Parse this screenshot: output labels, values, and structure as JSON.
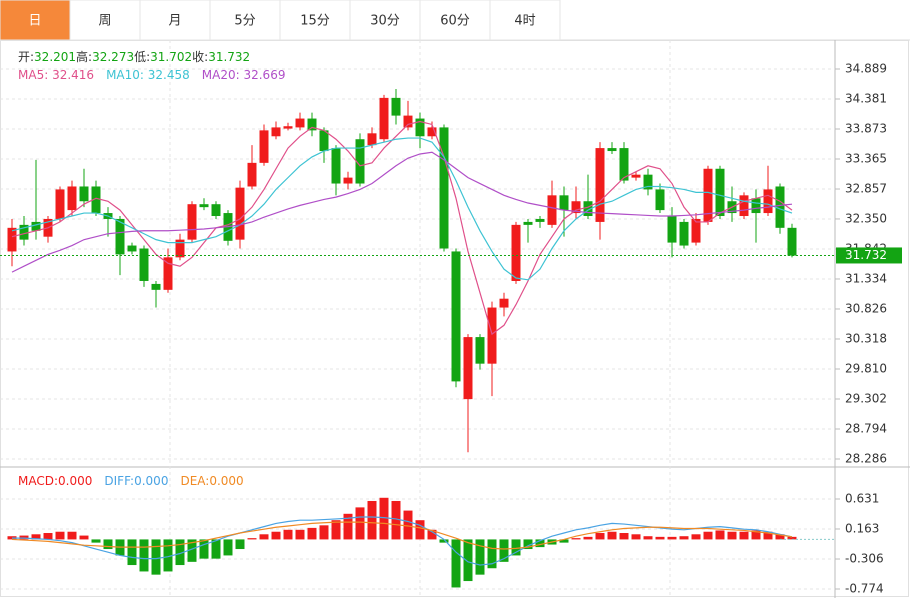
{
  "tabs": [
    "日",
    "周",
    "月",
    "5分",
    "15分",
    "30分",
    "60分",
    "4时"
  ],
  "chart_data": {
    "type": "candlestick",
    "legend": [
      {
        "label": "开:",
        "value": "32.201"
      },
      {
        "label": "高:",
        "value": "32.273"
      },
      {
        "label": "低:",
        "value": "31.702"
      },
      {
        "label": "收:",
        "value": "31.732"
      }
    ],
    "up_color": "#f01c1c",
    "down_color": "#13a413",
    "open": [
      31.8,
      32.25,
      32.3,
      32.05,
      32.35,
      32.5,
      32.9,
      32.9,
      32.45,
      32.35,
      31.9,
      31.85,
      31.25,
      31.15,
      31.7,
      32.0,
      32.6,
      32.6,
      32.45,
      32.0,
      32.9,
      33.3,
      33.75,
      33.88,
      33.9,
      34.05,
      33.85,
      33.55,
      32.95,
      33.7,
      33.6,
      33.7,
      34.4,
      33.9,
      34.05,
      33.75,
      33.9,
      31.8,
      29.3,
      30.35,
      29.9,
      30.85,
      31.3,
      32.3,
      32.35,
      32.25,
      32.75,
      32.45,
      32.65,
      32.3,
      33.55,
      33.55,
      33.05,
      33.1,
      32.85,
      32.4,
      32.3,
      31.95,
      32.3,
      33.2,
      32.65,
      32.4,
      32.7,
      32.45,
      32.9,
      32.2
    ],
    "high": [
      32.35,
      32.4,
      33.35,
      32.4,
      32.9,
      33.0,
      33.2,
      33.0,
      32.55,
      32.4,
      31.95,
      31.9,
      31.3,
      31.85,
      32.1,
      32.65,
      32.7,
      32.65,
      32.5,
      33.0,
      33.6,
      33.95,
      34.0,
      33.98,
      34.15,
      34.15,
      33.9,
      33.6,
      33.15,
      33.8,
      33.9,
      34.45,
      34.55,
      34.35,
      34.15,
      34.0,
      33.95,
      31.85,
      30.4,
      30.4,
      30.95,
      31.1,
      32.3,
      32.35,
      32.4,
      33.0,
      32.9,
      32.9,
      33.1,
      33.65,
      33.65,
      33.65,
      33.15,
      33.2,
      32.95,
      32.55,
      32.35,
      32.45,
      33.25,
      33.25,
      32.9,
      32.8,
      32.85,
      33.25,
      32.95,
      32.27
    ],
    "low": [
      31.55,
      31.9,
      32.0,
      31.95,
      32.3,
      32.4,
      32.55,
      32.4,
      32.05,
      31.4,
      31.75,
      31.2,
      30.85,
      31.1,
      31.65,
      31.95,
      32.5,
      32.35,
      31.9,
      31.85,
      32.85,
      33.25,
      33.7,
      33.85,
      33.85,
      33.75,
      33.3,
      32.75,
      32.85,
      32.9,
      33.55,
      33.65,
      33.95,
      33.85,
      33.55,
      33.7,
      31.8,
      29.5,
      28.4,
      29.8,
      29.35,
      30.7,
      31.25,
      31.95,
      32.2,
      32.2,
      32.05,
      32.35,
      32.35,
      32.0,
      33.45,
      32.95,
      33.0,
      32.75,
      32.45,
      31.7,
      31.85,
      31.9,
      32.25,
      32.35,
      32.3,
      32.35,
      31.95,
      32.4,
      32.1,
      31.7
    ],
    "close": [
      32.2,
      32.0,
      32.15,
      32.35,
      32.85,
      32.9,
      32.65,
      32.45,
      32.35,
      31.75,
      31.8,
      31.3,
      31.15,
      31.7,
      32.0,
      32.6,
      32.55,
      32.4,
      31.98,
      32.88,
      33.3,
      33.85,
      33.9,
      33.92,
      34.05,
      33.85,
      33.5,
      32.95,
      33.05,
      32.95,
      33.8,
      34.4,
      34.1,
      34.1,
      33.75,
      33.9,
      31.85,
      29.6,
      30.35,
      29.9,
      30.85,
      31.0,
      32.25,
      32.25,
      32.3,
      32.75,
      32.5,
      32.65,
      32.4,
      33.55,
      33.5,
      33.0,
      33.1,
      32.85,
      32.5,
      31.95,
      31.9,
      32.35,
      33.2,
      32.4,
      32.45,
      32.75,
      32.45,
      32.85,
      32.2,
      31.73
    ],
    "series": [
      {
        "name": "MA5",
        "color": "#e0508a",
        "value_label": "32.416",
        "values": [
          32.05,
          32.1,
          32.15,
          32.2,
          32.3,
          32.45,
          32.6,
          32.7,
          32.65,
          32.5,
          32.25,
          32.0,
          31.75,
          31.6,
          31.55,
          31.7,
          31.95,
          32.2,
          32.25,
          32.35,
          32.55,
          32.85,
          33.2,
          33.55,
          33.75,
          33.9,
          33.85,
          33.7,
          33.5,
          33.25,
          33.3,
          33.55,
          33.75,
          33.95,
          34.0,
          33.95,
          33.4,
          32.7,
          31.8,
          31.1,
          30.4,
          30.55,
          30.9,
          31.3,
          31.75,
          32.05,
          32.35,
          32.5,
          32.55,
          32.65,
          32.85,
          33.05,
          33.15,
          33.25,
          33.2,
          32.95,
          32.55,
          32.3,
          32.3,
          32.45,
          32.55,
          32.65,
          32.7,
          32.75,
          32.65,
          32.5
        ]
      },
      {
        "name": "MA10",
        "color": "#3ec3d3",
        "value_label": "32.458",
        "values": [
          32.15,
          32.2,
          32.25,
          32.3,
          32.35,
          32.4,
          32.45,
          32.45,
          32.4,
          32.3,
          32.2,
          32.1,
          32.0,
          31.95,
          31.95,
          31.95,
          32.0,
          32.05,
          32.15,
          32.25,
          32.4,
          32.6,
          32.85,
          33.05,
          33.25,
          33.4,
          33.5,
          33.55,
          33.55,
          33.55,
          33.6,
          33.65,
          33.7,
          33.72,
          33.72,
          33.65,
          33.4,
          33.0,
          32.55,
          32.15,
          31.8,
          31.5,
          31.35,
          31.32,
          31.5,
          31.85,
          32.15,
          32.35,
          32.5,
          32.6,
          32.65,
          32.75,
          32.85,
          32.9,
          32.9,
          32.88,
          32.85,
          32.8,
          32.8,
          32.75,
          32.7,
          32.65,
          32.62,
          32.6,
          32.52,
          32.45
        ]
      },
      {
        "name": "MA20",
        "color": "#b04fc8",
        "value_label": "32.669",
        "values": [
          31.45,
          31.55,
          31.65,
          31.75,
          31.82,
          31.9,
          32.0,
          32.05,
          32.1,
          32.12,
          32.14,
          32.15,
          32.15,
          32.15,
          32.16,
          32.17,
          32.18,
          32.2,
          32.22,
          32.25,
          32.3,
          32.38,
          32.45,
          32.52,
          32.58,
          32.63,
          32.68,
          32.72,
          32.78,
          32.85,
          32.95,
          33.1,
          33.25,
          33.38,
          33.45,
          33.48,
          33.35,
          33.2,
          33.05,
          32.95,
          32.85,
          32.75,
          32.68,
          32.62,
          32.58,
          32.54,
          32.5,
          32.48,
          32.46,
          32.45,
          32.44,
          32.43,
          32.42,
          32.41,
          32.4,
          32.4,
          32.41,
          32.42,
          32.44,
          32.46,
          32.48,
          32.5,
          32.53,
          32.55,
          32.58,
          32.6
        ]
      }
    ],
    "ylim": [
      28.286,
      34.889
    ],
    "yticks": [
      {
        "value": 28.286,
        "label": "28.286"
      },
      {
        "value": 28.794,
        "label": "28.794"
      },
      {
        "value": 29.302,
        "label": "29.302"
      },
      {
        "value": 29.81,
        "label": "29.810"
      },
      {
        "value": 30.318,
        "label": "30.318"
      },
      {
        "value": 30.826,
        "label": "30.826"
      },
      {
        "value": 31.334,
        "label": "31.334"
      },
      {
        "value": 31.842,
        "label": "31.842"
      },
      {
        "value": 32.35,
        "label": "32.350"
      },
      {
        "value": 32.857,
        "label": "32.857"
      },
      {
        "value": 33.365,
        "label": "33.365"
      },
      {
        "value": 33.873,
        "label": "33.873"
      },
      {
        "value": 34.381,
        "label": "34.381"
      },
      {
        "value": 34.889,
        "label": "34.889"
      }
    ],
    "last_price": 31.732,
    "last_price_color": "#13a413",
    "macd": {
      "legend": [
        {
          "name": "MACD",
          "color": "#f01c1c",
          "value_label": "0.000"
        },
        {
          "name": "DIFF",
          "color": "#4aa3e3",
          "value_label": "0.000"
        },
        {
          "name": "DEA",
          "color": "#f08a24",
          "value_label": "0.000"
        }
      ],
      "histogram": [
        0.05,
        0.06,
        0.08,
        0.1,
        0.12,
        0.12,
        0.06,
        -0.05,
        -0.15,
        -0.25,
        -0.4,
        -0.5,
        -0.55,
        -0.5,
        -0.4,
        -0.35,
        -0.3,
        -0.3,
        -0.25,
        -0.15,
        0.02,
        0.08,
        0.12,
        0.15,
        0.15,
        0.18,
        0.22,
        0.3,
        0.4,
        0.5,
        0.6,
        0.65,
        0.6,
        0.45,
        0.3,
        0.15,
        -0.05,
        -0.75,
        -0.65,
        -0.55,
        -0.45,
        -0.35,
        -0.25,
        -0.15,
        -0.12,
        -0.08,
        -0.05,
        0.02,
        0.04,
        0.1,
        0.12,
        0.1,
        0.08,
        0.05,
        0.04,
        0.04,
        0.05,
        0.08,
        0.12,
        0.14,
        0.12,
        0.12,
        0.14,
        0.12,
        0.08,
        0.04
      ],
      "diff": [
        0.02,
        0.02,
        0.01,
        0.0,
        -0.02,
        -0.05,
        -0.1,
        -0.15,
        -0.2,
        -0.25,
        -0.28,
        -0.3,
        -0.3,
        -0.27,
        -0.22,
        -0.15,
        -0.08,
        -0.02,
        0.05,
        0.1,
        0.15,
        0.2,
        0.25,
        0.28,
        0.3,
        0.3,
        0.31,
        0.32,
        0.33,
        0.35,
        0.35,
        0.34,
        0.32,
        0.28,
        0.22,
        0.12,
        0.0,
        -0.2,
        -0.35,
        -0.4,
        -0.38,
        -0.3,
        -0.2,
        -0.1,
        -0.02,
        0.05,
        0.1,
        0.15,
        0.18,
        0.22,
        0.25,
        0.24,
        0.22,
        0.2,
        0.18,
        0.16,
        0.15,
        0.17,
        0.19,
        0.2,
        0.18,
        0.16,
        0.15,
        0.12,
        0.08,
        0.04
      ],
      "dea": [
        0.0,
        -0.01,
        -0.02,
        -0.03,
        -0.05,
        -0.07,
        -0.09,
        -0.1,
        -0.11,
        -0.12,
        -0.12,
        -0.12,
        -0.11,
        -0.1,
        -0.08,
        -0.05,
        -0.02,
        0.02,
        0.06,
        0.1,
        0.13,
        0.16,
        0.19,
        0.21,
        0.23,
        0.25,
        0.26,
        0.27,
        0.27,
        0.27,
        0.26,
        0.25,
        0.23,
        0.21,
        0.18,
        0.14,
        0.08,
        0.02,
        -0.05,
        -0.1,
        -0.14,
        -0.15,
        -0.14,
        -0.12,
        -0.08,
        -0.04,
        0.0,
        0.05,
        0.09,
        0.12,
        0.15,
        0.17,
        0.18,
        0.19,
        0.19,
        0.18,
        0.17,
        0.17,
        0.17,
        0.16,
        0.15,
        0.14,
        0.12,
        0.1,
        0.07,
        0.04
      ],
      "ylim": [
        -0.774,
        0.631
      ],
      "yticks": [
        -0.774,
        -0.306,
        0.163,
        0.631
      ]
    }
  }
}
